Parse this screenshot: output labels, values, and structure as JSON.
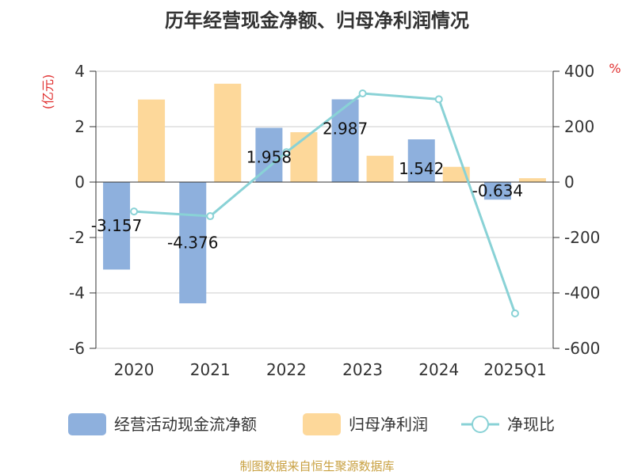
{
  "chart_data": {
    "type": "bar+line",
    "title": "历年经营现金净额、归母净利润情况",
    "categories": [
      "2020",
      "2021",
      "2022",
      "2023",
      "2024",
      "2025Q1"
    ],
    "left_axis": {
      "unit": "(亿元)",
      "ylim": [
        -6,
        4
      ],
      "ticks": [
        4,
        2,
        0,
        -2,
        -4,
        -6
      ]
    },
    "right_axis": {
      "unit": "%",
      "ylim": [
        -600,
        400
      ],
      "ticks": [
        400,
        200,
        0,
        -200,
        -400,
        -600
      ]
    },
    "series": [
      {
        "name": "经营活动现金流净额",
        "type": "bar",
        "axis": "left",
        "color": "#8eb0dd",
        "values": [
          -3.157,
          -4.376,
          1.958,
          2.987,
          1.542,
          -0.634
        ],
        "labels": [
          "-3.157",
          "-4.376",
          "1.958",
          "2.987",
          "1.542",
          "-0.634"
        ]
      },
      {
        "name": "归母净利润",
        "type": "bar",
        "axis": "left",
        "color": "#fdd89a",
        "values": [
          2.98,
          3.55,
          1.8,
          0.95,
          0.55,
          0.14
        ]
      },
      {
        "name": "净现比",
        "type": "line",
        "axis": "right",
        "color": "#89d2d6",
        "values": [
          -106,
          -123,
          108,
          320,
          299,
          -474
        ]
      }
    ],
    "legend": "bottom",
    "source": "制图数据来自恒生聚源数据库"
  }
}
